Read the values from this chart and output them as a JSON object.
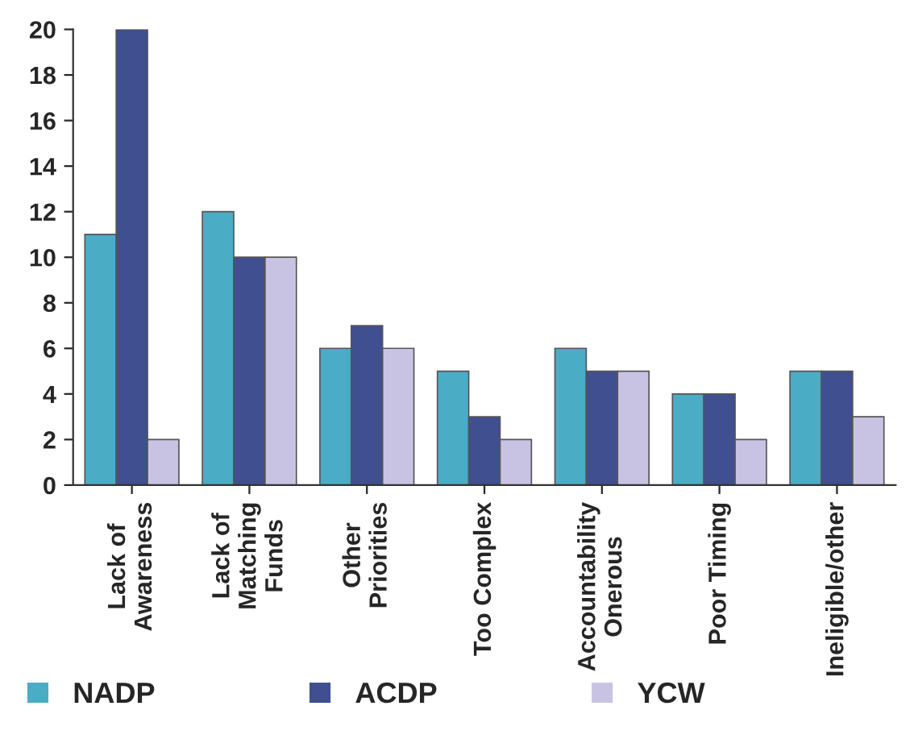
{
  "chart_data": {
    "type": "bar",
    "categories": [
      "Lack of\nAwareness",
      "Lack of\nMatching\nFunds",
      "Other\nPriorities",
      "Too Complex",
      "Accountability\nOnerous",
      "Poor Timing",
      "Ineligible/other"
    ],
    "series": [
      {
        "name": "NADP",
        "color": "#4bacc6",
        "values": [
          11,
          12,
          6,
          5,
          6,
          4,
          5
        ]
      },
      {
        "name": "ACDP",
        "color": "#3f4f8f",
        "values": [
          20,
          10,
          7,
          3,
          5,
          4,
          5
        ]
      },
      {
        "name": "YCW",
        "color": "#c9c3e3",
        "values": [
          2,
          10,
          6,
          2,
          5,
          2,
          3
        ]
      }
    ],
    "ylim": [
      0,
      20
    ],
    "yticks": [
      0,
      2,
      4,
      6,
      8,
      10,
      12,
      14,
      16,
      18,
      20
    ],
    "grid": false,
    "legend": "bottom"
  }
}
